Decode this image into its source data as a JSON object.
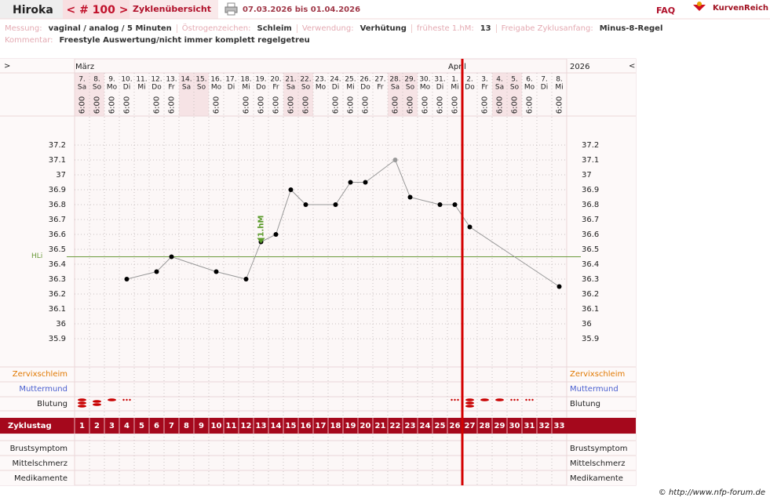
{
  "header": {
    "name": "Hiroka",
    "cycle": "< # 100 >",
    "overview": "Zyklenübersicht",
    "range": "07.03.2026 bis 01.04.2026",
    "faq": "FAQ",
    "logo": "KurvenReich"
  },
  "info": {
    "fields": [
      {
        "label": "Messung:",
        "value": "vaginal / analog / 5 Minuten"
      },
      {
        "label": "Östrogenzeichen:",
        "value": "Schleim"
      },
      {
        "label": "Verwendung:",
        "value": "Verhütung"
      },
      {
        "label": "früheste 1.hM:",
        "value": "13"
      },
      {
        "label": "Freigabe Zyklusanfang:",
        "value": "Minus-8-Regel"
      }
    ],
    "comment_label": "Kommentar:",
    "comment": "Freestyle Auswertung/nicht immer komplett regelgetreu"
  },
  "chart_data": {
    "type": "line",
    "nav_left": ">",
    "nav_right": "<",
    "year": "2026",
    "categories": [
      "7.",
      "8.",
      "9.",
      "10.",
      "11.",
      "12.",
      "13.",
      "14.",
      "15.",
      "16.",
      "17.",
      "18.",
      "19.",
      "20.",
      "21.",
      "22.",
      "23.",
      "24.",
      "25.",
      "26.",
      "27.",
      "28.",
      "29.",
      "30.",
      "31.",
      "1.",
      "2.",
      "3.",
      "4.",
      "5.",
      "6.",
      "7.",
      "8."
    ],
    "weekdays": [
      "Sa",
      "So",
      "Mo",
      "Di",
      "Mi",
      "Do",
      "Fr",
      "Sa",
      "So",
      "Mo",
      "Di",
      "Mi",
      "Do",
      "Fr",
      "Sa",
      "So",
      "Mo",
      "Di",
      "Mi",
      "Do",
      "Fr",
      "Sa",
      "So",
      "Mo",
      "Di",
      "Mi",
      "Do",
      "Fr",
      "Sa",
      "So",
      "Mo",
      "Di",
      "Mi"
    ],
    "month_labels": [
      "März",
      null,
      null,
      null,
      null,
      null,
      null,
      null,
      null,
      null,
      null,
      null,
      null,
      null,
      null,
      null,
      null,
      null,
      null,
      null,
      null,
      null,
      null,
      null,
      null,
      "April",
      null,
      null,
      null,
      null,
      null,
      null,
      null
    ],
    "times": [
      "6:00",
      "6:00",
      "6:00",
      "6:00",
      null,
      "6:00",
      "6:00",
      null,
      null,
      "6:00",
      null,
      "6:00",
      "6:00",
      "6:00",
      "6:00",
      "6:00",
      null,
      "6:00",
      "6:00",
      "6:00",
      null,
      "6:00",
      "6:00",
      "6:00",
      "6:00",
      "6:00",
      null,
      "6:00",
      "6:00",
      "6:00",
      "6:00",
      null,
      "6:00"
    ],
    "header_colors": [
      "#f6e3e5",
      "#f6e3e5",
      "#fcf7f7",
      "#fcf7f7",
      "#fcf7f7",
      "#fcf7f7",
      "#fcf7f7",
      "#f6e3e5",
      "#f6e3e5",
      "#fcf7f7",
      "#fcf7f7",
      "#fcf7f7",
      "#fcf7f7",
      "#fcf7f7",
      "#f6e3e5",
      "#f6e3e5",
      "#fcf7f7",
      "#fcf7f7",
      "#fcf7f7",
      "#fcf7f7",
      "#fcf7f7",
      "#f6e3e5",
      "#f6e3e5",
      "#fcf7f7",
      "#fcf7f7",
      "#fcf7f7",
      "#fcf7f7",
      "#fcf7f7",
      "#f6e3e5",
      "#f6e3e5",
      "#fcf7f7",
      "#fcf7f7",
      "#fcf7f7"
    ],
    "x": [
      4,
      6,
      7,
      10,
      12,
      13,
      14,
      15,
      16,
      18,
      19,
      20,
      22,
      23,
      25,
      26,
      27,
      33
    ],
    "values": [
      36.3,
      36.35,
      36.45,
      36.35,
      36.3,
      36.55,
      36.6,
      36.9,
      36.8,
      36.8,
      36.95,
      36.95,
      37.1,
      36.85,
      36.8,
      36.8,
      36.65,
      36.25
    ],
    "marker_colors": [
      "#000",
      "#000",
      "#000",
      "#000",
      "#000",
      "#000",
      "#000",
      "#000",
      "#000",
      "#000",
      "#000",
      "#000",
      "#999",
      "#000",
      "#000",
      "#000",
      "#000",
      "#000"
    ],
    "xlim": [
      0.5,
      33.5
    ],
    "xticks": [
      1,
      2,
      3,
      4,
      5,
      6,
      7,
      8,
      9,
      10,
      11,
      12,
      13,
      14,
      15,
      16,
      17,
      18,
      19,
      20,
      21,
      22,
      23,
      24,
      25,
      26,
      27,
      28,
      29,
      30,
      31,
      32,
      33
    ],
    "xlabel": "Zyklustag",
    "ylim": [
      35.8,
      37.3
    ],
    "yticks": [
      35.9,
      36,
      36.1,
      36.2,
      36.3,
      36.4,
      36.5,
      36.6,
      36.7,
      36.8,
      36.9,
      37,
      37.1,
      37.2
    ],
    "grid": true,
    "coverline": {
      "label": "HLi",
      "value": 36.45,
      "color": "#6a9a3a"
    },
    "first_hm": {
      "label": "1.hM",
      "day": 13,
      "color": "#5a9a2a"
    },
    "cycle_end_day": 26,
    "cycle_end_color": "#d40000",
    "rows": {
      "cervical_mucus": {
        "label": "Zervixschleim",
        "color": "#e07800"
      },
      "cervix": {
        "label": "Muttermund",
        "color": "#4a5fcf"
      },
      "bleeding": {
        "label": "Blutung",
        "color": "#c80000",
        "values": [
          4,
          3,
          2,
          1,
          null,
          null,
          null,
          null,
          null,
          null,
          null,
          null,
          null,
          null,
          null,
          null,
          null,
          null,
          null,
          null,
          null,
          null,
          null,
          null,
          null,
          1,
          4,
          2,
          2,
          1,
          1,
          null,
          null
        ]
      },
      "breast": {
        "label": "Brustsymptom"
      },
      "pain": {
        "label": "Mittelschmerz"
      },
      "medication": {
        "label": "Medikamente"
      }
    }
  },
  "footer": "© http://www.nfp-forum.de"
}
